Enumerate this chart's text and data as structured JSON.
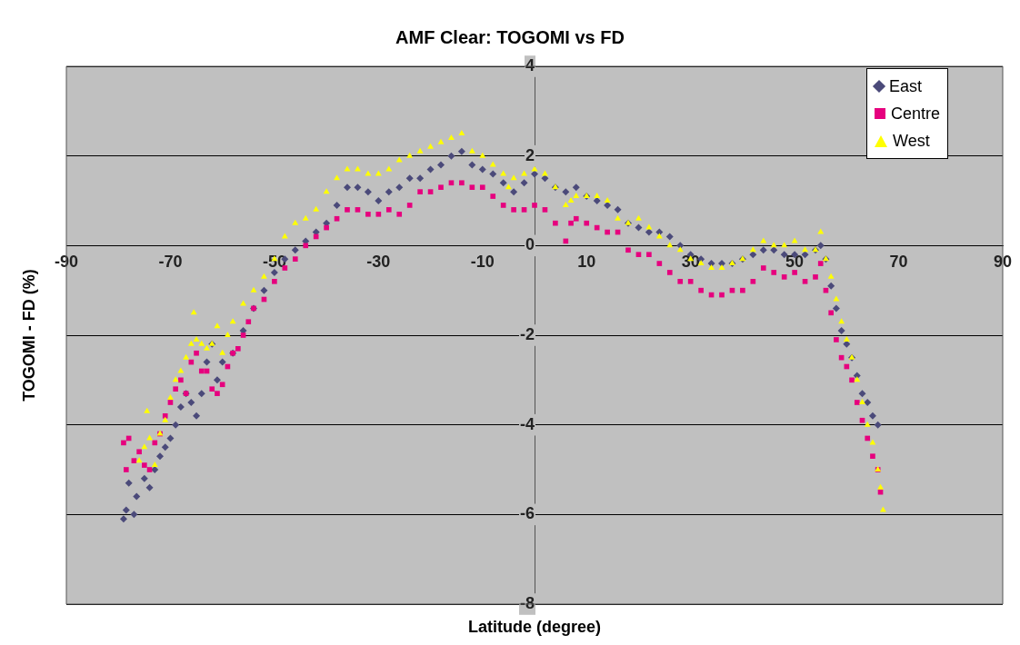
{
  "chart_data": {
    "type": "scatter",
    "title": "AMF Clear: TOGOMI vs FD",
    "xlabel": "Latitude (degree)",
    "ylabel": "TOGOMI - FD (%)",
    "xlim": [
      -90,
      90
    ],
    "xticks": [
      -90,
      -70,
      -50,
      -30,
      -10,
      10,
      30,
      50,
      70,
      90
    ],
    "ylim": [
      -8,
      4
    ],
    "yticks": [
      -8,
      -6,
      -4,
      -2,
      0,
      2,
      4
    ],
    "grid": "y",
    "legend": "top right",
    "series": [
      {
        "name": "East",
        "color": "#4b4a7a",
        "marker": "diamond",
        "x": [
          -79,
          -78.5,
          -78,
          -77,
          -76.5,
          -75,
          -74,
          -73,
          -72,
          -71,
          -70,
          -69,
          -68,
          -67,
          -66,
          -65,
          -64,
          -63,
          -62,
          -61,
          -60,
          -58,
          -56,
          -54,
          -52,
          -50,
          -48,
          -46,
          -44,
          -42,
          -40,
          -38,
          -36,
          -34,
          -32,
          -30,
          -28,
          -26,
          -24,
          -22,
          -20,
          -18,
          -16,
          -14,
          -12,
          -10,
          -8,
          -6,
          -4,
          -2,
          0,
          2,
          4,
          6,
          8,
          10,
          12,
          14,
          16,
          18,
          20,
          22,
          24,
          26,
          28,
          30,
          32,
          34,
          36,
          38,
          40,
          42,
          44,
          46,
          48,
          50,
          52,
          54,
          55,
          56,
          57,
          58,
          59,
          60,
          61,
          62,
          63,
          64,
          65,
          66
        ],
        "values": [
          -6.1,
          -5.9,
          -5.3,
          -6.0,
          -5.6,
          -5.2,
          -5.4,
          -5.0,
          -4.7,
          -4.5,
          -4.3,
          -4.0,
          -3.6,
          -3.3,
          -3.5,
          -3.8,
          -3.3,
          -2.6,
          -2.2,
          -3.0,
          -2.6,
          -2.4,
          -1.9,
          -1.4,
          -1.0,
          -0.6,
          -0.3,
          -0.1,
          0.1,
          0.3,
          0.5,
          0.9,
          1.3,
          1.3,
          1.2,
          1.0,
          1.2,
          1.3,
          1.5,
          1.5,
          1.7,
          1.8,
          2.0,
          2.1,
          1.8,
          1.7,
          1.6,
          1.4,
          1.2,
          1.4,
          1.6,
          1.5,
          1.3,
          1.2,
          1.3,
          1.1,
          1.0,
          0.9,
          0.8,
          0.5,
          0.4,
          0.3,
          0.3,
          0.2,
          0.0,
          -0.2,
          -0.3,
          -0.4,
          -0.4,
          -0.4,
          -0.3,
          -0.2,
          -0.1,
          -0.1,
          -0.2,
          -0.2,
          -0.2,
          -0.1,
          0.0,
          -0.3,
          -0.9,
          -1.4,
          -1.9,
          -2.2,
          -2.5,
          -2.9,
          -3.3,
          -3.5,
          -3.8,
          -4.0
        ]
      },
      {
        "name": "Centre",
        "color": "#e6007e",
        "marker": "square",
        "x": [
          -79,
          -78,
          -78.5,
          -77,
          -76,
          -75,
          -74,
          -73,
          -72,
          -71,
          -70,
          -69,
          -68,
          -67,
          -66,
          -65,
          -64,
          -63,
          -62,
          -61,
          -60,
          -59,
          -58,
          -57,
          -56,
          -55,
          -54,
          -52,
          -50,
          -48,
          -46,
          -44,
          -42,
          -40,
          -38,
          -36,
          -34,
          -32,
          -30,
          -28,
          -26,
          -24,
          -22,
          -20,
          -18,
          -16,
          -14,
          -12,
          -10,
          -8,
          -6,
          -4,
          -2,
          0,
          2,
          4,
          6,
          7,
          8,
          10,
          12,
          14,
          16,
          18,
          20,
          22,
          24,
          26,
          28,
          30,
          32,
          34,
          36,
          38,
          40,
          42,
          44,
          46,
          48,
          50,
          52,
          54,
          55,
          56,
          57,
          58,
          59,
          60,
          61,
          62,
          63,
          64,
          65,
          66,
          66.5
        ],
        "values": [
          -4.4,
          -4.3,
          -5.0,
          -4.8,
          -4.6,
          -4.9,
          -5.0,
          -4.4,
          -4.2,
          -3.8,
          -3.5,
          -3.2,
          -3.0,
          -3.3,
          -2.6,
          -2.4,
          -2.8,
          -2.8,
          -3.2,
          -3.3,
          -3.1,
          -2.7,
          -2.4,
          -2.3,
          -2.0,
          -1.7,
          -1.4,
          -1.2,
          -0.8,
          -0.5,
          -0.3,
          0.0,
          0.2,
          0.4,
          0.6,
          0.8,
          0.8,
          0.7,
          0.7,
          0.8,
          0.7,
          0.9,
          1.2,
          1.2,
          1.3,
          1.4,
          1.4,
          1.3,
          1.3,
          1.1,
          0.9,
          0.8,
          0.8,
          0.9,
          0.8,
          0.5,
          0.1,
          0.5,
          0.6,
          0.5,
          0.4,
          0.3,
          0.3,
          -0.1,
          -0.2,
          -0.2,
          -0.4,
          -0.6,
          -0.8,
          -0.8,
          -1.0,
          -1.1,
          -1.1,
          -1.0,
          -1.0,
          -0.8,
          -0.5,
          -0.6,
          -0.7,
          -0.6,
          -0.8,
          -0.7,
          -0.4,
          -1.0,
          -1.5,
          -2.1,
          -2.5,
          -2.7,
          -3.0,
          -3.5,
          -3.9,
          -4.3,
          -4.7,
          -5.0,
          -5.5
        ]
      },
      {
        "name": "West",
        "color": "#ffff00",
        "marker": "triangle",
        "x": [
          -76,
          -75,
          -74.5,
          -74,
          -73,
          -72,
          -71,
          -70,
          -69,
          -68,
          -67,
          -66,
          -65.5,
          -65,
          -64,
          -63,
          -62,
          -61,
          -60,
          -59,
          -58,
          -56,
          -54,
          -52,
          -50,
          -48,
          -46,
          -44,
          -42,
          -40,
          -38,
          -36,
          -34,
          -32,
          -30,
          -28,
          -26,
          -24,
          -22,
          -20,
          -18,
          -16,
          -14,
          -12,
          -10,
          -8,
          -6,
          -5,
          -4,
          -2,
          0,
          2,
          4,
          6,
          7,
          8,
          10,
          12,
          14,
          16,
          18,
          20,
          22,
          24,
          26,
          28,
          30,
          32,
          34,
          36,
          38,
          40,
          42,
          44,
          46,
          48,
          50,
          52,
          54,
          55,
          56,
          57,
          58,
          59,
          60,
          61,
          62,
          63,
          64,
          65,
          66,
          66.5,
          67
        ],
        "values": [
          -4.8,
          -4.5,
          -3.7,
          -4.3,
          -4.9,
          -4.2,
          -3.9,
          -3.4,
          -3.0,
          -2.8,
          -2.5,
          -2.2,
          -1.5,
          -2.1,
          -2.2,
          -2.3,
          -2.2,
          -1.8,
          -2.4,
          -2.0,
          -1.7,
          -1.3,
          -1.0,
          -0.7,
          -0.3,
          0.2,
          0.5,
          0.6,
          0.8,
          1.2,
          1.5,
          1.7,
          1.7,
          1.6,
          1.6,
          1.7,
          1.9,
          2.0,
          2.1,
          2.2,
          2.3,
          2.4,
          2.5,
          2.1,
          2.0,
          1.8,
          1.6,
          1.3,
          1.5,
          1.6,
          1.7,
          1.6,
          1.3,
          0.9,
          1.0,
          1.1,
          1.1,
          1.1,
          1.0,
          0.6,
          0.5,
          0.6,
          0.4,
          0.2,
          0.0,
          -0.1,
          -0.3,
          -0.4,
          -0.5,
          -0.5,
          -0.4,
          -0.3,
          -0.1,
          0.1,
          0.0,
          0.0,
          0.1,
          -0.1,
          -0.1,
          0.3,
          -0.3,
          -0.7,
          -1.2,
          -1.7,
          -2.1,
          -2.5,
          -3.0,
          -3.5,
          -4.0,
          -4.4,
          -5.0,
          -5.4,
          -5.9
        ]
      }
    ]
  }
}
